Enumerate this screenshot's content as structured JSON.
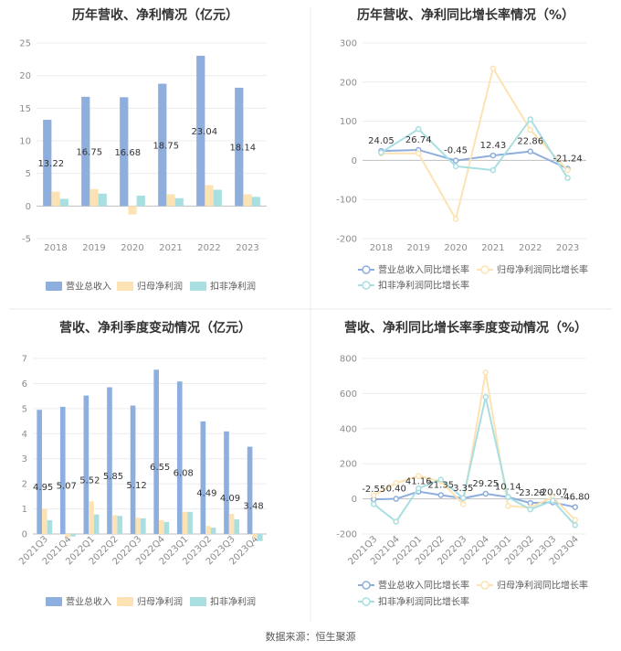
{
  "source_text": "数据来源：恒生聚源",
  "colors": {
    "revenue": "#8eaede",
    "parent": "#fde3b4",
    "deducted": "#a9dfe0"
  },
  "chart_data": [
    {
      "id": "annual-bar",
      "type": "bar",
      "title": "历年营收、净利情况（亿元）",
      "categories": [
        "2018",
        "2019",
        "2020",
        "2021",
        "2022",
        "2023"
      ],
      "ylim": [
        -5,
        25
      ],
      "yticks": [
        -5,
        0,
        5,
        10,
        15,
        20,
        25
      ],
      "series": [
        {
          "name": "营业总收入",
          "values": [
            13.22,
            16.75,
            16.68,
            18.75,
            23.04,
            18.14
          ],
          "labels": [
            "13.22",
            "16.75",
            "16.68",
            "18.75",
            "23.04",
            "18.14"
          ]
        },
        {
          "name": "归母净利润",
          "values": [
            2.2,
            2.6,
            -1.3,
            1.8,
            3.2,
            1.8
          ]
        },
        {
          "name": "扣非净利润",
          "values": [
            1.1,
            1.9,
            1.6,
            1.2,
            2.5,
            1.4
          ]
        }
      ],
      "legend": "bottom"
    },
    {
      "id": "annual-line",
      "type": "line",
      "title": "历年营收、净利同比增长率情况（%）",
      "categories": [
        "2018",
        "2019",
        "2020",
        "2021",
        "2022",
        "2023"
      ],
      "ylim": [
        -200,
        300
      ],
      "yticks": [
        -200,
        -100,
        0,
        100,
        200,
        300
      ],
      "series": [
        {
          "name": "营业总收入同比增长率",
          "values": [
            24.05,
            26.74,
            -0.45,
            12.43,
            22.86,
            -21.24
          ],
          "labels": [
            "24.05",
            "26.74",
            "-0.45",
            "12.43",
            "22.86",
            "-21.24"
          ]
        },
        {
          "name": "归母净利润同比增长率",
          "values": [
            18,
            18,
            -150,
            235,
            78,
            -25
          ]
        },
        {
          "name": "扣非净利润同比增长率",
          "values": [
            20,
            80,
            -15,
            -25,
            105,
            -45
          ]
        }
      ],
      "legend": "bottom"
    },
    {
      "id": "quarterly-bar",
      "type": "bar",
      "title": "营收、净利季度变动情况（亿元）",
      "categories": [
        "2021Q3",
        "2021Q4",
        "2022Q1",
        "2022Q2",
        "2022Q3",
        "2022Q4",
        "2023Q1",
        "2023Q2",
        "2023Q3",
        "2023Q4"
      ],
      "ylim": [
        0,
        7
      ],
      "yticks": [
        0,
        1,
        2,
        3,
        4,
        5,
        6,
        7
      ],
      "series": [
        {
          "name": "营业总收入",
          "values": [
            4.95,
            5.07,
            5.52,
            5.85,
            5.12,
            6.55,
            6.08,
            4.49,
            4.09,
            3.48
          ],
          "labels": [
            "4.95",
            "5.07",
            "5.52",
            "5.85",
            "5.12",
            "6.55",
            "6.08",
            "4.49",
            "4.09",
            "3.48"
          ]
        },
        {
          "name": "归母净利润",
          "values": [
            1.0,
            -0.12,
            1.3,
            0.75,
            0.65,
            0.55,
            0.88,
            0.32,
            0.8,
            -0.15
          ]
        },
        {
          "name": "扣非净利润",
          "values": [
            0.55,
            -0.1,
            0.78,
            0.72,
            0.62,
            0.48,
            0.88,
            0.25,
            0.58,
            -0.28
          ]
        }
      ],
      "legend": "bottom"
    },
    {
      "id": "quarterly-line",
      "type": "line",
      "title": "营收、净利同比增长率季度变动情况（%）",
      "categories": [
        "2021Q3",
        "2021Q4",
        "2022Q1",
        "2022Q2",
        "2022Q3",
        "2022Q4",
        "2023Q1",
        "2023Q2",
        "2023Q3",
        "2023Q4"
      ],
      "ylim": [
        -200,
        800
      ],
      "yticks": [
        -200,
        0,
        200,
        400,
        600,
        800
      ],
      "series": [
        {
          "name": "营业总收入同比增长率",
          "values": [
            -2.55,
            0.4,
            41.16,
            21.35,
            3.35,
            29.25,
            10.14,
            -23.28,
            -20.07,
            -46.8
          ],
          "labels": [
            "-2.55",
            "0.40",
            "41.16",
            "21.35",
            "3.35",
            "29.25",
            "10.14",
            "-23.28",
            "-20.07",
            "-46.80"
          ]
        },
        {
          "name": "归母净利润同比增长率",
          "values": [
            20,
            90,
            130,
            100,
            -30,
            720,
            -40,
            -50,
            10,
            -120
          ]
        },
        {
          "name": "扣非净利润同比增长率",
          "values": [
            -30,
            -130,
            60,
            110,
            5,
            580,
            10,
            -60,
            -10,
            -150
          ]
        }
      ],
      "legend": "bottom"
    }
  ]
}
